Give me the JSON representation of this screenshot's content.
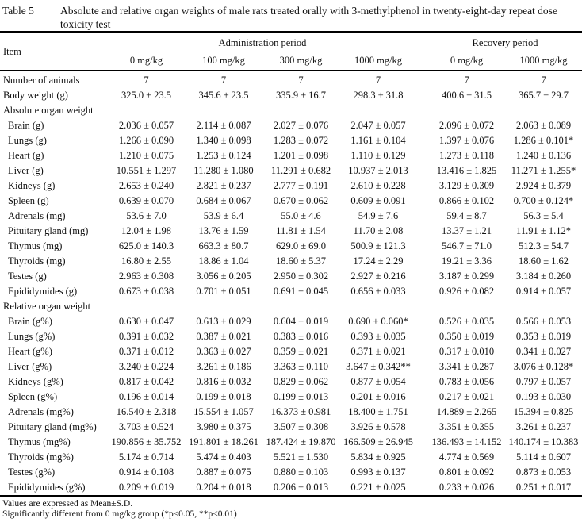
{
  "title": {
    "label": "Table 5",
    "text": "Absolute and relative organ weights of male rats treated orally with 3-methylphenol in twenty-eight-day repeat dose toxicity test"
  },
  "table": {
    "item_header": "Item",
    "groups": [
      {
        "label": "Administration period",
        "columns": [
          "0 mg/kg",
          "100 mg/kg",
          "300 mg/kg",
          "1000 mg/kg"
        ]
      },
      {
        "label": "Recovery period",
        "columns": [
          "0 mg/kg",
          "1000 mg/kg"
        ]
      }
    ],
    "rows": [
      {
        "label": "Number of animals",
        "section": false,
        "indent": false,
        "values": [
          "7",
          "7",
          "7",
          "7",
          "7",
          "7"
        ]
      },
      {
        "label": "Body weight (g)",
        "section": false,
        "indent": false,
        "values": [
          "325.0 ± 23.5",
          "345.6 ± 23.5",
          "335.9 ± 16.7",
          "298.3 ± 31.8",
          "400.6 ± 31.5",
          "365.7 ± 29.7"
        ]
      },
      {
        "label": "Absolute organ weight",
        "section": true,
        "indent": false,
        "values": []
      },
      {
        "label": "Brain (g)",
        "section": false,
        "indent": true,
        "values": [
          "2.036 ± 0.057",
          "2.114 ± 0.087",
          "2.027 ± 0.076",
          "2.047 ± 0.057",
          "2.096 ± 0.072",
          "2.063 ± 0.089"
        ]
      },
      {
        "label": "Lungs (g)",
        "section": false,
        "indent": true,
        "values": [
          "1.266 ± 0.090",
          "1.340 ± 0.098",
          "1.283 ± 0.072",
          "1.161 ± 0.104",
          "1.397 ± 0.076",
          "1.286 ± 0.101*"
        ]
      },
      {
        "label": "Heart (g)",
        "section": false,
        "indent": true,
        "values": [
          "1.210 ± 0.075",
          "1.253 ± 0.124",
          "1.201 ± 0.098",
          "1.110 ± 0.129",
          "1.273 ± 0.118",
          "1.240 ± 0.136"
        ]
      },
      {
        "label": "Liver (g)",
        "section": false,
        "indent": true,
        "values": [
          "10.551 ± 1.297",
          "11.280 ± 1.080",
          "11.291 ± 0.682",
          "10.937 ± 2.013",
          "13.416 ± 1.825",
          "11.271 ± 1.255*"
        ]
      },
      {
        "label": "Kidneys (g)",
        "section": false,
        "indent": true,
        "values": [
          "2.653 ± 0.240",
          "2.821 ± 0.237",
          "2.777 ± 0.191",
          "2.610 ± 0.228",
          "3.129 ± 0.309",
          "2.924 ± 0.379"
        ]
      },
      {
        "label": "Spleen (g)",
        "section": false,
        "indent": true,
        "values": [
          "0.639 ± 0.070",
          "0.684 ± 0.067",
          "0.670 ± 0.062",
          "0.609 ± 0.091",
          "0.866 ± 0.102",
          "0.700 ± 0.124*"
        ]
      },
      {
        "label": "Adrenals (mg)",
        "section": false,
        "indent": true,
        "values": [
          "53.6 ± 7.0",
          "53.9 ± 6.4",
          "55.0 ± 4.6",
          "54.9 ± 7.6",
          "59.4 ± 8.7",
          "56.3 ± 5.4"
        ]
      },
      {
        "label": "Pituitary gland (mg)",
        "section": false,
        "indent": true,
        "values": [
          "12.04 ± 1.98",
          "13.76 ± 1.59",
          "11.81 ± 1.54",
          "11.70 ± 2.08",
          "13.37 ± 1.21",
          "11.91 ± 1.12*"
        ]
      },
      {
        "label": "Thymus (mg)",
        "section": false,
        "indent": true,
        "values": [
          "625.0 ± 140.3",
          "663.3 ± 80.7",
          "629.0 ± 69.0",
          "500.9 ± 121.3",
          "546.7 ± 71.0",
          "512.3 ± 54.7"
        ]
      },
      {
        "label": "Thyroids (mg)",
        "section": false,
        "indent": true,
        "values": [
          "16.80 ± 2.55",
          "18.86 ± 1.04",
          "18.60 ± 5.37",
          "17.24 ± 2.29",
          "19.21 ± 3.36",
          "18.60 ± 1.62"
        ]
      },
      {
        "label": "Testes (g)",
        "section": false,
        "indent": true,
        "values": [
          "2.963 ± 0.308",
          "3.056 ± 0.205",
          "2.950 ± 0.302",
          "2.927 ± 0.216",
          "3.187 ± 0.299",
          "3.184 ± 0.260"
        ]
      },
      {
        "label": "Epididymides (g)",
        "section": false,
        "indent": true,
        "values": [
          "0.673 ± 0.038",
          "0.701 ± 0.051",
          "0.691 ± 0.045",
          "0.656 ± 0.033",
          "0.926 ± 0.082",
          "0.914 ± 0.057"
        ]
      },
      {
        "label": "Relative organ weight",
        "section": true,
        "indent": false,
        "values": []
      },
      {
        "label": "Brain (g%)",
        "section": false,
        "indent": true,
        "values": [
          "0.630 ± 0.047",
          "0.613 ± 0.029",
          "0.604 ± 0.019",
          "0.690 ± 0.060*",
          "0.526 ± 0.035",
          "0.566 ± 0.053"
        ]
      },
      {
        "label": "Lungs (g%)",
        "section": false,
        "indent": true,
        "values": [
          "0.391 ± 0.032",
          "0.387 ± 0.021",
          "0.383 ± 0.016",
          "0.393 ± 0.035",
          "0.350 ± 0.019",
          "0.353 ± 0.019"
        ]
      },
      {
        "label": "Heart (g%)",
        "section": false,
        "indent": true,
        "values": [
          "0.371 ± 0.012",
          "0.363 ± 0.027",
          "0.359 ± 0.021",
          "0.371 ± 0.021",
          "0.317 ± 0.010",
          "0.341 ± 0.027"
        ]
      },
      {
        "label": "Liver (g%)",
        "section": false,
        "indent": true,
        "values": [
          "3.240 ± 0.224",
          "3.261 ± 0.186",
          "3.363 ± 0.110",
          "3.647 ± 0.342**",
          "3.341 ± 0.287",
          "3.076 ± 0.128*"
        ]
      },
      {
        "label": "Kidneys (g%)",
        "section": false,
        "indent": true,
        "values": [
          "0.817 ± 0.042",
          "0.816 ± 0.032",
          "0.829 ± 0.062",
          "0.877 ± 0.054",
          "0.783 ± 0.056",
          "0.797 ± 0.057"
        ]
      },
      {
        "label": "Spleen (g%)",
        "section": false,
        "indent": true,
        "values": [
          "0.196 ± 0.014",
          "0.199 ± 0.018",
          "0.199 ± 0.013",
          "0.201 ± 0.016",
          "0.217 ± 0.021",
          "0.193 ± 0.030"
        ]
      },
      {
        "label": "Adrenals (mg%)",
        "section": false,
        "indent": true,
        "values": [
          "16.540 ± 2.318",
          "15.554 ± 1.057",
          "16.373 ± 0.981",
          "18.400 ± 1.751",
          "14.889 ± 2.265",
          "15.394 ± 0.825"
        ]
      },
      {
        "label": "Pituitary gland (mg%)",
        "section": false,
        "indent": true,
        "values": [
          "3.703 ± 0.524",
          "3.980 ± 0.375",
          "3.507 ± 0.308",
          "3.926 ± 0.578",
          "3.351 ± 0.355",
          "3.261 ± 0.237"
        ]
      },
      {
        "label": "Thymus (mg%)",
        "section": false,
        "indent": true,
        "values": [
          "190.856 ± 35.752",
          "191.801 ± 18.261",
          "187.424 ± 19.870",
          "166.509 ± 26.945",
          "136.493 ± 14.152",
          "140.174 ± 10.383"
        ]
      },
      {
        "label": "Thyroids (mg%)",
        "section": false,
        "indent": true,
        "values": [
          "5.174 ± 0.714",
          "5.474 ± 0.403",
          "5.521 ± 1.530",
          "5.834 ± 0.925",
          "4.774 ± 0.569",
          "5.114 ± 0.607"
        ]
      },
      {
        "label": "Testes (g%)",
        "section": false,
        "indent": true,
        "values": [
          "0.914 ± 0.108",
          "0.887 ± 0.075",
          "0.880 ± 0.103",
          "0.993 ± 0.137",
          "0.801 ± 0.092",
          "0.873 ± 0.053"
        ]
      },
      {
        "label": "Epididymides (g%)",
        "section": false,
        "indent": true,
        "values": [
          "0.209 ± 0.019",
          "0.204 ± 0.018",
          "0.206 ± 0.013",
          "0.221 ± 0.025",
          "0.233 ± 0.026",
          "0.251 ± 0.017"
        ]
      }
    ]
  },
  "footnotes": [
    "Values are expressed as Mean±S.D.",
    "Significantly different from 0 mg/kg group (*p<0.05, **p<0.01)"
  ]
}
